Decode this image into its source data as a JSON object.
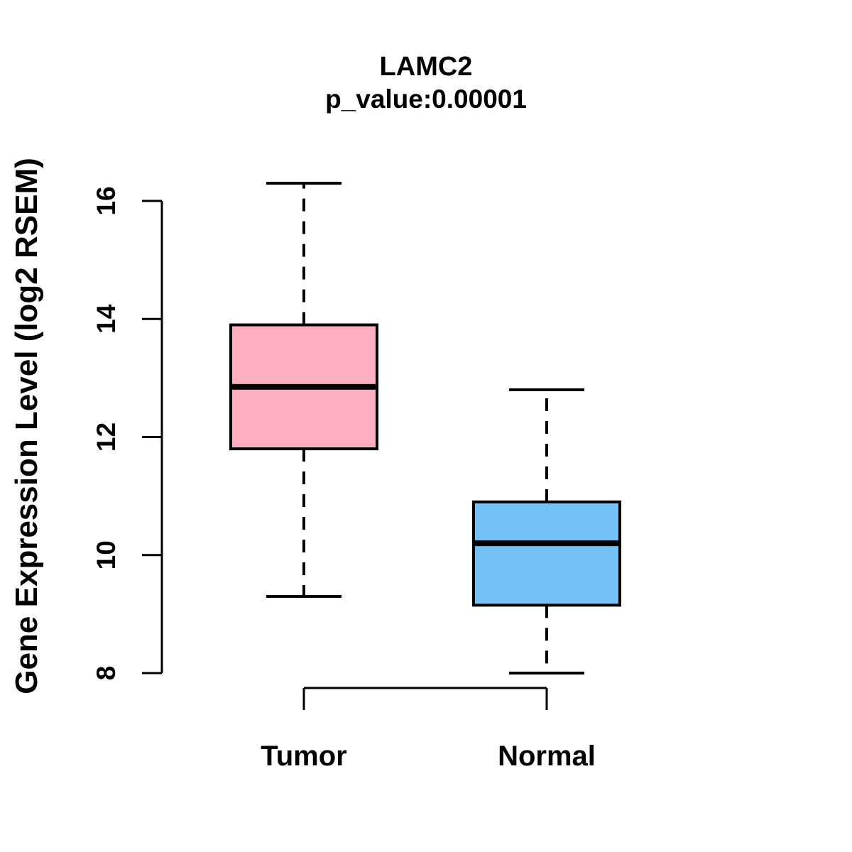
{
  "chart_data": {
    "type": "boxplot",
    "title": "LAMC2",
    "subtitle": "p_value:0.00001",
    "ylabel": "Gene Expression Level (log2 RSEM)",
    "xlabel": "",
    "yticks": [
      8,
      10,
      12,
      14,
      16
    ],
    "ylim": [
      8,
      16.3
    ],
    "grid": false,
    "legend": null,
    "categories": [
      "Tumor",
      "Normal"
    ],
    "groups": [
      {
        "label": "Tumor",
        "color": "#FCAEC0",
        "whisker_low": 9.3,
        "q1": 11.8,
        "median": 12.85,
        "q3": 13.9,
        "whisker_high": 16.3
      },
      {
        "label": "Normal",
        "color": "#73C0F7",
        "whisker_low": 8.0,
        "q1": 9.15,
        "median": 10.2,
        "q3": 10.9,
        "whisker_high": 12.8
      }
    ],
    "comparison_bracket": {
      "from": "Tumor",
      "to": "Normal"
    }
  },
  "colors": {
    "background": "#FFFFFF",
    "box_border": "#000000",
    "tumor_fill": "#FCAEC0",
    "normal_fill": "#73C0F7"
  }
}
